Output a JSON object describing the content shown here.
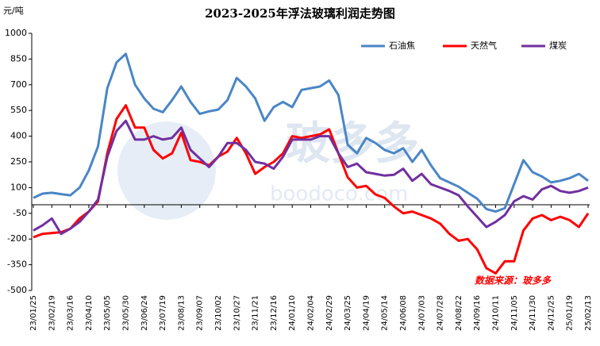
{
  "chart_data": {
    "type": "line",
    "title": "2023-2025年浮法玻璃利润走势图",
    "y_unit": "元/吨",
    "source_note": "数据来源：玻多多",
    "watermark": [
      "玻多多",
      "boodoco.com"
    ],
    "legend": "top-right",
    "grid": false,
    "ylim": [
      -500,
      1000
    ],
    "yticks": [
      -500,
      -350,
      -200,
      -50,
      100,
      250,
      400,
      550,
      700,
      850,
      1000
    ],
    "categories": [
      "23/01/25",
      null,
      "23/02/19",
      null,
      "23/03/16",
      null,
      "23/04/10",
      null,
      "23/05/05",
      null,
      "23/05/30",
      null,
      "23/06/24",
      null,
      "23/07/19",
      null,
      "23/08/13",
      null,
      "23/09/07",
      null,
      "23/10/02",
      null,
      "23/10/27",
      null,
      "23/11/21",
      null,
      "23/12/16",
      null,
      "24/01/10",
      null,
      "24/02/04",
      null,
      "24/02/29",
      null,
      "24/03/25",
      null,
      "24/04/19",
      null,
      "24/05/14",
      null,
      "24/06/08",
      null,
      "24/07/03",
      null,
      "24/07/28",
      null,
      "24/08/22",
      null,
      "24/09/16",
      null,
      "24/10/11",
      null,
      "24/11/05",
      null,
      "24/11/30",
      null,
      "24/12/25",
      null,
      "25/01/19",
      null,
      "25/02/13"
    ],
    "series": [
      {
        "name": "石油焦",
        "color": "#4a86c5",
        "values": [
          40,
          65,
          70,
          62,
          55,
          100,
          200,
          340,
          680,
          830,
          880,
          700,
          620,
          560,
          540,
          610,
          690,
          600,
          530,
          545,
          555,
          610,
          740,
          690,
          620,
          490,
          570,
          600,
          570,
          670,
          680,
          690,
          725,
          640,
          350,
          300,
          390,
          360,
          320,
          300,
          330,
          250,
          320,
          230,
          155,
          130,
          105,
          70,
          35,
          -25,
          -40,
          -20,
          120,
          260,
          190,
          165,
          130,
          140,
          155,
          180,
          140
        ]
      },
      {
        "name": "天然气",
        "color": "#ff0000",
        "values": [
          -190,
          -170,
          -165,
          -160,
          -140,
          -80,
          -40,
          20,
          300,
          500,
          580,
          450,
          450,
          320,
          270,
          300,
          420,
          260,
          250,
          230,
          280,
          310,
          390,
          300,
          180,
          220,
          250,
          300,
          400,
          390,
          400,
          410,
          440,
          300,
          160,
          100,
          110,
          60,
          40,
          -10,
          -50,
          -40,
          -60,
          -80,
          -110,
          -170,
          -210,
          -200,
          -260,
          -370,
          -400,
          -330,
          -330,
          -150,
          -80,
          -60,
          -90,
          -70,
          -90,
          -130,
          -50
        ]
      },
      {
        "name": "煤炭",
        "color": "#7030a0",
        "values": [
          -150,
          -120,
          -80,
          -170,
          -140,
          -100,
          -40,
          30,
          280,
          430,
          490,
          380,
          380,
          400,
          380,
          390,
          450,
          320,
          270,
          220,
          280,
          360,
          360,
          320,
          250,
          240,
          210,
          280,
          380,
          380,
          380,
          400,
          400,
          300,
          220,
          240,
          190,
          180,
          170,
          175,
          210,
          140,
          180,
          120,
          100,
          80,
          55,
          -10,
          -70,
          -130,
          -100,
          -60,
          20,
          50,
          30,
          90,
          110,
          80,
          70,
          80,
          100
        ]
      }
    ]
  }
}
